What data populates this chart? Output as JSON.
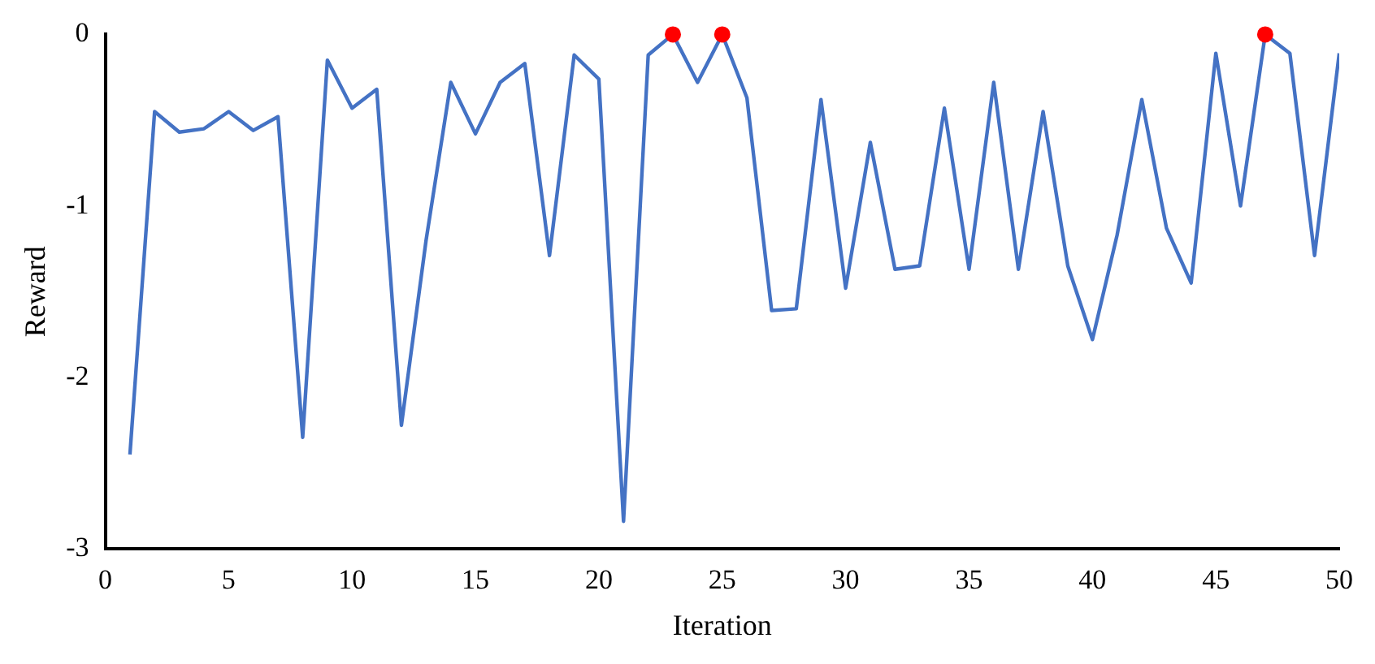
{
  "chart_data": {
    "type": "line",
    "xlabel": "Iteration",
    "ylabel": "Reward",
    "x": [
      1,
      2,
      3,
      4,
      5,
      6,
      7,
      8,
      9,
      10,
      11,
      12,
      13,
      14,
      15,
      16,
      17,
      18,
      19,
      20,
      21,
      22,
      23,
      24,
      25,
      26,
      27,
      28,
      29,
      30,
      31,
      32,
      33,
      34,
      35,
      36,
      37,
      38,
      39,
      40,
      41,
      42,
      43,
      44,
      45,
      46,
      47,
      48,
      49,
      50
    ],
    "series": [
      {
        "color": "#4472c4",
        "marker": "none",
        "values": [
          -2.45,
          -0.45,
          -0.57,
          -0.55,
          -0.45,
          -0.56,
          -0.48,
          -2.35,
          -0.15,
          -0.43,
          -0.32,
          -2.28,
          -1.2,
          -0.28,
          -0.58,
          -0.28,
          -0.17,
          -1.29,
          -0.12,
          -0.26,
          -2.84,
          -0.12,
          0,
          -0.28,
          0,
          -0.37,
          -1.61,
          -1.6,
          -0.38,
          -1.48,
          -0.63,
          -1.37,
          -1.35,
          -0.43,
          -1.37,
          -0.28,
          -1.37,
          -0.45,
          -1.35,
          -1.78,
          -1.17,
          -0.38,
          -1.13,
          -1.45,
          -0.11,
          -1,
          0,
          -0.11,
          -1.29,
          -0.11
        ]
      },
      {
        "type": "scatter",
        "color": "#ff0000",
        "marker": "circle",
        "x": [
          23,
          25,
          47
        ],
        "values": [
          0,
          0,
          0
        ]
      }
    ],
    "xlim": [
      0,
      50
    ],
    "xticks": [
      0,
      5,
      10,
      15,
      20,
      25,
      30,
      35,
      40,
      45,
      50
    ],
    "ylim": [
      -3,
      0
    ],
    "yticks": [
      -3,
      -2,
      -1,
      0
    ],
    "grid": false,
    "legend": false
  }
}
